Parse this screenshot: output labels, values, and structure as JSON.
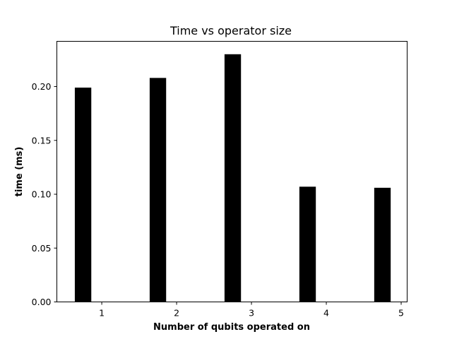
{
  "chart_data": {
    "type": "bar",
    "title": "Time vs operator size",
    "xlabel": "Number of qubits operated on",
    "ylabel": "time (ms)",
    "x": [
      1,
      2,
      3,
      4,
      5
    ],
    "values": [
      0.199,
      0.208,
      0.23,
      0.107,
      0.106
    ],
    "bar_offset": -0.25,
    "bar_width": 0.22,
    "xlim": [
      0.4,
      5.08
    ],
    "ylim": [
      0,
      0.242
    ],
    "xticks": [
      "1",
      "2",
      "3",
      "4",
      "5"
    ],
    "yticks": [
      "0.00",
      "0.05",
      "0.10",
      "0.15",
      "0.20"
    ],
    "bar_color": "#000000",
    "grid": false
  }
}
